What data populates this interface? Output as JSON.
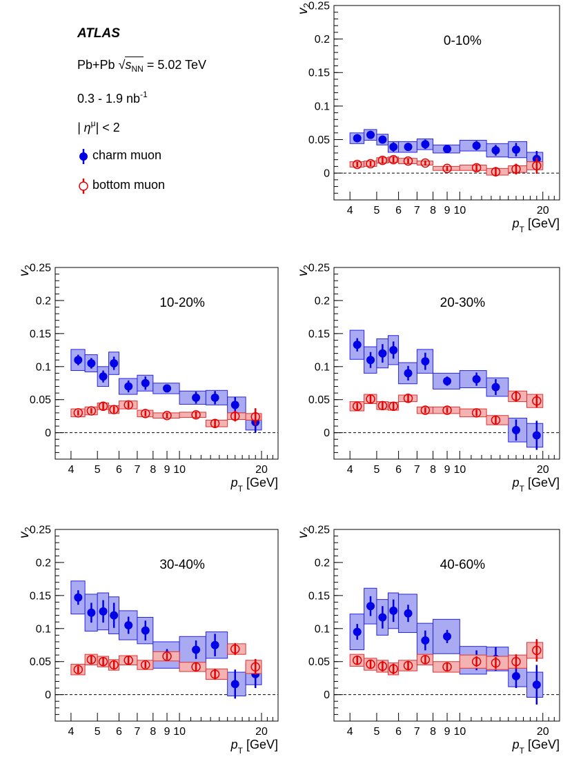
{
  "legend": {
    "experiment": "ATLAS",
    "system_prefix": "Pb+Pb",
    "sqrt_symbol": "√",
    "s_label": "s",
    "s_subscript": "NN",
    "energy": "= 5.02 TeV",
    "lumi_base": "0.3 - 1.9 nb",
    "lumi_exp": "-1",
    "eta_open": "| η",
    "eta_sup": "μ",
    "eta_close": "| < 2",
    "charm_label": "charm muon",
    "bottom_label": "bottom muon"
  },
  "colors": {
    "charm": "#0000e6",
    "charm_box_fill": "#aaaaf2",
    "charm_box_stroke": "#2323e8",
    "bottom": "#e60000",
    "bottom_box_fill": "#f3b3b3",
    "bottom_box_stroke": "#e03030"
  },
  "axis_text": {
    "ylabel_main": "v",
    "ylabel_sub": "2",
    "xlabel_main": "p",
    "xlabel_sub": "T",
    "xlabel_unit": "[GeV]"
  },
  "chart_data": [
    {
      "type": "scatter",
      "title": "0-10%",
      "x_scale": "log",
      "xlim": [
        3.5,
        23
      ],
      "ylim": [
        -0.04,
        0.25
      ],
      "x_ticks": [
        4,
        5,
        6,
        7,
        8,
        9,
        10,
        20
      ],
      "x_tick_labels": [
        "4",
        "5",
        "6",
        "7",
        "8",
        "9",
        "10",
        "20"
      ],
      "y_ticks": [
        0,
        0.05,
        0.1,
        0.15,
        0.2,
        0.25
      ],
      "y_tick_labels": [
        "0",
        "0.05",
        "0.1",
        "0.15",
        "0.2",
        "0.25"
      ],
      "series": [
        {
          "name": "charm muon",
          "x": [
            4.25,
            4.75,
            5.25,
            5.75,
            6.5,
            7.5,
            9.0,
            11.5,
            13.5,
            16.0,
            19.0
          ],
          "x_lo": [
            4.0,
            4.5,
            5.0,
            5.5,
            6.0,
            7.0,
            8.0,
            10.0,
            12.5,
            15.0,
            17.5
          ],
          "x_hi": [
            4.5,
            5.0,
            5.5,
            6.0,
            7.0,
            8.0,
            10.0,
            12.5,
            15.0,
            17.5,
            20.0
          ],
          "y": [
            0.052,
            0.057,
            0.05,
            0.039,
            0.039,
            0.043,
            0.036,
            0.041,
            0.034,
            0.035,
            0.021
          ],
          "stat": [
            0.006,
            0.006,
            0.006,
            0.007,
            0.006,
            0.007,
            0.005,
            0.007,
            0.008,
            0.01,
            0.012
          ],
          "syst": [
            0.008,
            0.008,
            0.008,
            0.008,
            0.008,
            0.008,
            0.006,
            0.008,
            0.01,
            0.012,
            0.01
          ]
        },
        {
          "name": "bottom muon",
          "x": [
            4.25,
            4.75,
            5.25,
            5.75,
            6.5,
            7.5,
            9.0,
            11.5,
            13.5,
            16.0,
            19.0
          ],
          "x_lo": [
            4.0,
            4.5,
            5.0,
            5.5,
            6.0,
            7.0,
            8.0,
            10.0,
            12.5,
            15.0,
            17.5
          ],
          "x_hi": [
            4.5,
            5.0,
            5.5,
            6.0,
            7.0,
            8.0,
            10.0,
            12.5,
            15.0,
            17.5,
            20.0
          ],
          "y": [
            0.013,
            0.014,
            0.019,
            0.02,
            0.018,
            0.015,
            0.007,
            0.008,
            0.002,
            0.006,
            0.011
          ],
          "stat": [
            0.004,
            0.004,
            0.005,
            0.005,
            0.004,
            0.004,
            0.004,
            0.005,
            0.007,
            0.008,
            0.012
          ],
          "syst": [
            0.004,
            0.004,
            0.004,
            0.004,
            0.004,
            0.003,
            0.003,
            0.004,
            0.005,
            0.005,
            0.006
          ]
        }
      ]
    },
    {
      "type": "scatter",
      "title": "10-20%",
      "x_scale": "log",
      "xlim": [
        3.5,
        23
      ],
      "ylim": [
        -0.04,
        0.25
      ],
      "x_ticks": [
        4,
        5,
        6,
        7,
        8,
        9,
        10,
        20
      ],
      "x_tick_labels": [
        "4",
        "5",
        "6",
        "7",
        "8",
        "9",
        "10",
        "20"
      ],
      "y_ticks": [
        0,
        0.05,
        0.1,
        0.15,
        0.2,
        0.25
      ],
      "y_tick_labels": [
        "0",
        "0.05",
        "0.1",
        "0.15",
        "0.2",
        "0.25"
      ],
      "series": [
        {
          "name": "charm muon",
          "x": [
            4.25,
            4.75,
            5.25,
            5.75,
            6.5,
            7.5,
            9.0,
            11.5,
            13.5,
            16.0,
            19.0
          ],
          "x_lo": [
            4.0,
            4.5,
            5.0,
            5.5,
            6.0,
            7.0,
            8.0,
            10.0,
            12.5,
            15.0,
            17.5
          ],
          "x_hi": [
            4.5,
            5.0,
            5.5,
            6.0,
            7.0,
            8.0,
            10.0,
            12.5,
            15.0,
            17.5,
            20.0
          ],
          "y": [
            0.11,
            0.105,
            0.085,
            0.105,
            0.07,
            0.075,
            0.067,
            0.053,
            0.053,
            0.042,
            0.016
          ],
          "stat": [
            0.008,
            0.008,
            0.009,
            0.01,
            0.009,
            0.01,
            0.006,
            0.009,
            0.01,
            0.012,
            0.016
          ],
          "syst": [
            0.016,
            0.013,
            0.015,
            0.017,
            0.012,
            0.012,
            0.008,
            0.01,
            0.011,
            0.012,
            0.012
          ]
        },
        {
          "name": "bottom muon",
          "x": [
            4.25,
            4.75,
            5.25,
            5.75,
            6.5,
            7.5,
            9.0,
            11.5,
            13.5,
            16.0,
            19.0
          ],
          "x_lo": [
            4.0,
            4.5,
            5.0,
            5.5,
            6.0,
            7.0,
            8.0,
            10.0,
            12.5,
            15.0,
            17.5
          ],
          "x_hi": [
            4.5,
            5.0,
            5.5,
            6.0,
            7.0,
            8.0,
            10.0,
            12.5,
            15.0,
            17.5,
            20.0
          ],
          "y": [
            0.03,
            0.033,
            0.04,
            0.035,
            0.042,
            0.029,
            0.026,
            0.027,
            0.014,
            0.025,
            0.024
          ],
          "stat": [
            0.004,
            0.004,
            0.005,
            0.005,
            0.005,
            0.004,
            0.004,
            0.005,
            0.006,
            0.008,
            0.013
          ],
          "syst": [
            0.006,
            0.006,
            0.005,
            0.006,
            0.006,
            0.005,
            0.004,
            0.004,
            0.005,
            0.005,
            0.005
          ]
        }
      ]
    },
    {
      "type": "scatter",
      "title": "20-30%",
      "x_scale": "log",
      "xlim": [
        3.5,
        23
      ],
      "ylim": [
        -0.04,
        0.25
      ],
      "x_ticks": [
        4,
        5,
        6,
        7,
        8,
        9,
        10,
        20
      ],
      "x_tick_labels": [
        "4",
        "5",
        "6",
        "7",
        "8",
        "9",
        "10",
        "20"
      ],
      "y_ticks": [
        0,
        0.05,
        0.1,
        0.15,
        0.2,
        0.25
      ],
      "y_tick_labels": [
        "0",
        "0.05",
        "0.1",
        "0.15",
        "0.2",
        "0.25"
      ],
      "series": [
        {
          "name": "charm muon",
          "x": [
            4.25,
            4.75,
            5.25,
            5.75,
            6.5,
            7.5,
            9.0,
            11.5,
            13.5,
            16.0,
            19.0
          ],
          "x_lo": [
            4.0,
            4.5,
            5.0,
            5.5,
            6.0,
            7.0,
            8.0,
            10.0,
            12.5,
            15.0,
            17.5
          ],
          "x_hi": [
            4.5,
            5.0,
            5.5,
            6.0,
            7.0,
            8.0,
            10.0,
            12.5,
            15.0,
            17.5,
            20.0
          ],
          "y": [
            0.133,
            0.11,
            0.12,
            0.125,
            0.09,
            0.108,
            0.078,
            0.081,
            0.069,
            0.004,
            -0.004
          ],
          "stat": [
            0.01,
            0.012,
            0.014,
            0.013,
            0.011,
            0.013,
            0.007,
            0.01,
            0.012,
            0.016,
            0.022
          ],
          "syst": [
            0.022,
            0.02,
            0.022,
            0.022,
            0.016,
            0.018,
            0.012,
            0.013,
            0.014,
            0.018,
            0.018
          ]
        },
        {
          "name": "bottom muon",
          "x": [
            4.25,
            4.75,
            5.25,
            5.75,
            6.5,
            7.5,
            9.0,
            11.5,
            13.5,
            16.0,
            19.0
          ],
          "x_lo": [
            4.0,
            4.5,
            5.0,
            5.5,
            6.0,
            7.0,
            8.0,
            10.0,
            12.5,
            15.0,
            17.5
          ],
          "x_hi": [
            4.5,
            5.0,
            5.5,
            6.0,
            7.0,
            8.0,
            10.0,
            12.5,
            15.0,
            17.5,
            20.0
          ],
          "y": [
            0.04,
            0.051,
            0.041,
            0.04,
            0.052,
            0.034,
            0.034,
            0.03,
            0.019,
            0.055,
            0.048
          ],
          "stat": [
            0.005,
            0.006,
            0.006,
            0.006,
            0.005,
            0.004,
            0.004,
            0.005,
            0.007,
            0.008,
            0.01
          ],
          "syst": [
            0.007,
            0.007,
            0.006,
            0.006,
            0.005,
            0.005,
            0.005,
            0.006,
            0.007,
            0.008,
            0.01
          ]
        }
      ]
    },
    {
      "type": "scatter",
      "title": "30-40%",
      "x_scale": "log",
      "xlim": [
        3.5,
        23
      ],
      "ylim": [
        -0.04,
        0.25
      ],
      "x_ticks": [
        4,
        5,
        6,
        7,
        8,
        9,
        10,
        20
      ],
      "x_tick_labels": [
        "4",
        "5",
        "6",
        "7",
        "8",
        "9",
        "10",
        "20"
      ],
      "y_ticks": [
        0,
        0.05,
        0.1,
        0.15,
        0.2,
        0.25
      ],
      "y_tick_labels": [
        "0",
        "0.05",
        "0.1",
        "0.15",
        "0.2",
        "0.25"
      ],
      "series": [
        {
          "name": "charm muon",
          "x": [
            4.25,
            4.75,
            5.25,
            5.75,
            6.5,
            7.5,
            9.0,
            11.5,
            13.5,
            16.0,
            19.0
          ],
          "x_lo": [
            4.0,
            4.5,
            5.0,
            5.5,
            6.0,
            7.0,
            8.0,
            10.0,
            12.5,
            15.0,
            17.5
          ],
          "x_hi": [
            4.5,
            5.0,
            5.5,
            6.0,
            7.0,
            8.0,
            10.0,
            12.5,
            15.0,
            17.5,
            20.0
          ],
          "y": [
            0.147,
            0.124,
            0.126,
            0.12,
            0.105,
            0.097,
            0.06,
            0.068,
            0.075,
            0.016,
            0.031
          ],
          "stat": [
            0.011,
            0.015,
            0.017,
            0.019,
            0.013,
            0.015,
            0.009,
            0.014,
            0.017,
            0.022,
            0.021
          ],
          "syst": [
            0.025,
            0.028,
            0.028,
            0.028,
            0.022,
            0.02,
            0.02,
            0.02,
            0.02,
            0.018,
            0.016
          ]
        },
        {
          "name": "bottom muon",
          "x": [
            4.25,
            4.75,
            5.25,
            5.75,
            6.5,
            7.5,
            9.0,
            11.5,
            13.5,
            16.0,
            19.0
          ],
          "x_lo": [
            4.0,
            4.5,
            5.0,
            5.5,
            6.0,
            7.0,
            8.0,
            10.0,
            12.5,
            15.0,
            17.5
          ],
          "x_hi": [
            4.5,
            5.0,
            5.5,
            6.0,
            7.0,
            8.0,
            10.0,
            12.5,
            15.0,
            17.5,
            20.0
          ],
          "y": [
            0.038,
            0.053,
            0.05,
            0.045,
            0.052,
            0.045,
            0.058,
            0.042,
            0.031,
            0.069,
            0.042
          ],
          "stat": [
            0.005,
            0.006,
            0.007,
            0.007,
            0.006,
            0.005,
            0.005,
            0.006,
            0.008,
            0.009,
            0.012
          ],
          "syst": [
            0.008,
            0.008,
            0.008,
            0.008,
            0.007,
            0.007,
            0.007,
            0.007,
            0.008,
            0.008,
            0.01
          ]
        }
      ]
    },
    {
      "type": "scatter",
      "title": "40-60%",
      "x_scale": "log",
      "xlim": [
        3.5,
        23
      ],
      "ylim": [
        -0.04,
        0.25
      ],
      "x_ticks": [
        4,
        5,
        6,
        7,
        8,
        9,
        10,
        20
      ],
      "x_tick_labels": [
        "4",
        "5",
        "6",
        "7",
        "8",
        "9",
        "10",
        "20"
      ],
      "y_ticks": [
        0,
        0.05,
        0.1,
        0.15,
        0.2,
        0.25
      ],
      "y_tick_labels": [
        "0",
        "0.05",
        "0.1",
        "0.15",
        "0.2",
        "0.25"
      ],
      "series": [
        {
          "name": "charm muon",
          "x": [
            4.25,
            4.75,
            5.25,
            5.75,
            6.5,
            7.5,
            9.0,
            11.5,
            13.5,
            16.0,
            19.0
          ],
          "x_lo": [
            4.0,
            4.5,
            5.0,
            5.5,
            6.0,
            7.0,
            8.0,
            10.0,
            12.5,
            15.0,
            17.5
          ],
          "x_hi": [
            4.5,
            5.0,
            5.5,
            6.0,
            7.0,
            8.0,
            10.0,
            12.5,
            15.0,
            17.5,
            20.0
          ],
          "y": [
            0.095,
            0.134,
            0.117,
            0.127,
            0.123,
            0.082,
            0.088,
            0.052,
            0.054,
            0.028,
            0.015
          ],
          "stat": [
            0.012,
            0.015,
            0.017,
            0.017,
            0.013,
            0.015,
            0.01,
            0.015,
            0.018,
            0.018,
            0.03
          ],
          "syst": [
            0.027,
            0.027,
            0.027,
            0.027,
            0.029,
            0.026,
            0.026,
            0.021,
            0.018,
            0.016,
            0.019
          ]
        },
        {
          "name": "bottom muon",
          "x": [
            4.25,
            4.75,
            5.25,
            5.75,
            6.5,
            7.5,
            9.0,
            11.5,
            13.5,
            16.0,
            19.0
          ],
          "x_lo": [
            4.0,
            4.5,
            5.0,
            5.5,
            6.0,
            7.0,
            8.0,
            10.0,
            12.5,
            15.0,
            17.5
          ],
          "x_hi": [
            4.5,
            5.0,
            5.5,
            6.0,
            7.0,
            8.0,
            10.0,
            12.5,
            15.0,
            17.5,
            20.0
          ],
          "y": [
            0.052,
            0.046,
            0.043,
            0.039,
            0.044,
            0.053,
            0.042,
            0.05,
            0.048,
            0.05,
            0.067
          ],
          "stat": [
            0.006,
            0.007,
            0.008,
            0.008,
            0.007,
            0.006,
            0.006,
            0.008,
            0.009,
            0.011,
            0.017
          ],
          "syst": [
            0.009,
            0.009,
            0.009,
            0.009,
            0.008,
            0.008,
            0.008,
            0.01,
            0.01,
            0.01,
            0.012
          ]
        }
      ]
    }
  ]
}
